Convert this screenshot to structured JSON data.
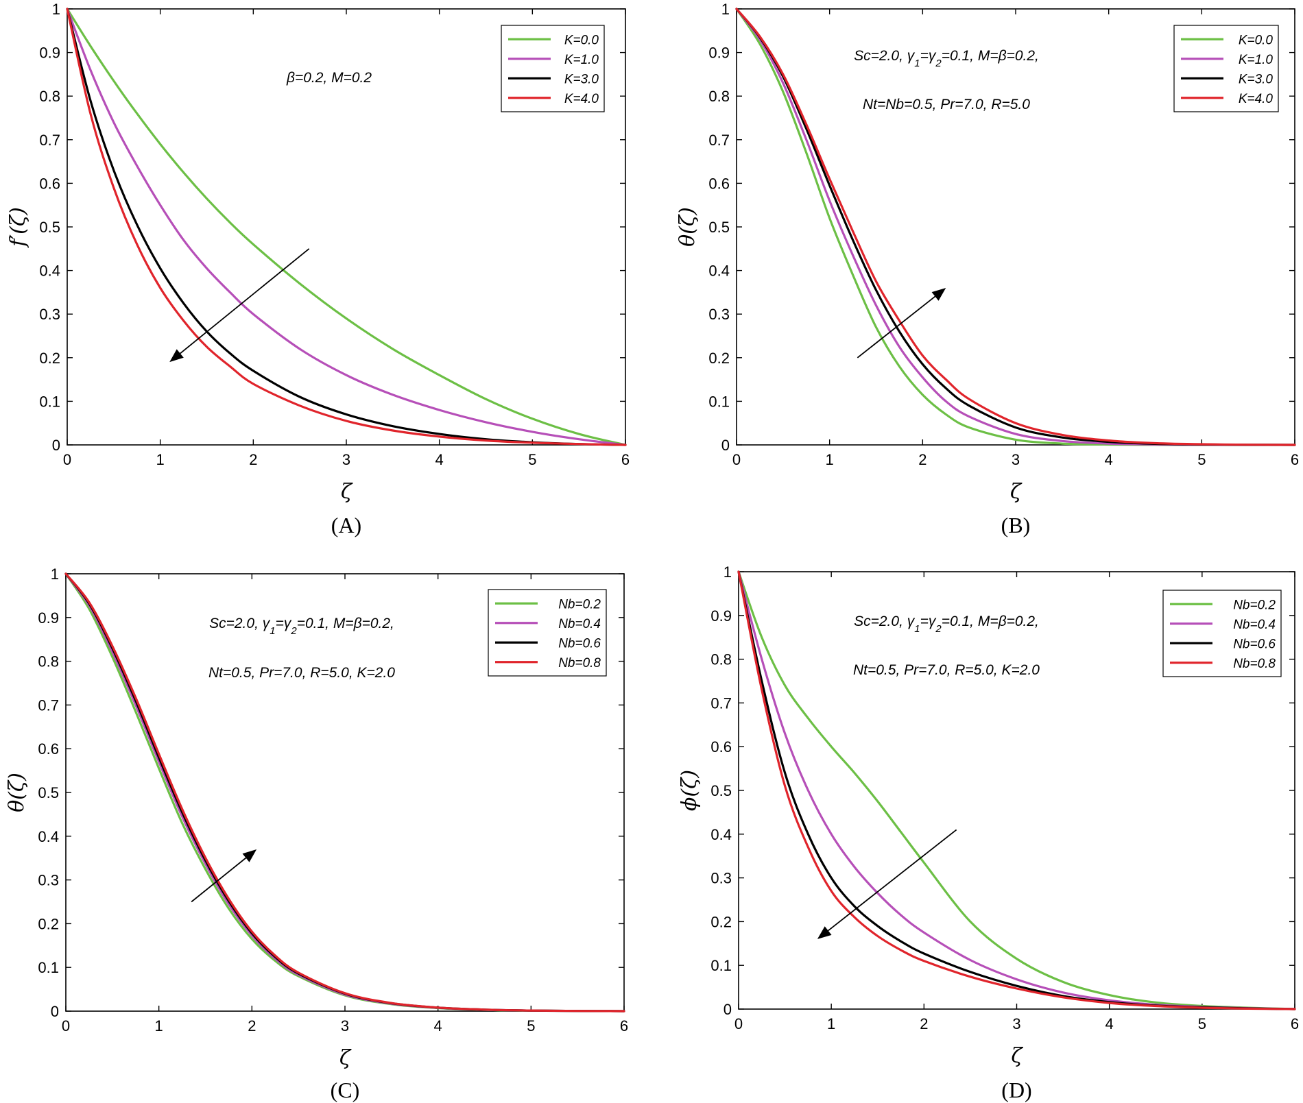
{
  "colors": {
    "green": "#6cbf45",
    "purple": "#b64fb8",
    "black": "#000000",
    "red": "#e0242b"
  },
  "chart_data": [
    {
      "type": "line",
      "caption": "(A)",
      "xlabel": "ζ",
      "ylabel": "f′(ζ)",
      "xlim": [
        0,
        6
      ],
      "ylim": [
        0,
        1
      ],
      "xticks": [
        "0",
        "1",
        "2",
        "3",
        "4",
        "5",
        "6"
      ],
      "yticks": [
        "0",
        "0.1",
        "0.2",
        "0.3",
        "0.4",
        "0.5",
        "0.6",
        "0.7",
        "0.8",
        "0.9",
        "1"
      ],
      "annotations": [
        "β=0.2, M=0.2"
      ],
      "legend_position": "top-right",
      "arrow": {
        "from": [
          2.6,
          0.45
        ],
        "to": [
          1.1,
          0.19
        ],
        "meaning": "decreasing with K"
      },
      "x": [
        0,
        0.25,
        0.5,
        0.75,
        1,
        1.25,
        1.5,
        1.75,
        2,
        2.5,
        3,
        3.5,
        4,
        4.5,
        5,
        5.5,
        6
      ],
      "series": [
        {
          "name": "K=0.0",
          "color": "green",
          "values": [
            1.0,
            0.915,
            0.835,
            0.76,
            0.69,
            0.625,
            0.565,
            0.51,
            0.46,
            0.37,
            0.29,
            0.22,
            0.16,
            0.105,
            0.06,
            0.025,
            0.0
          ]
        },
        {
          "name": "K=1.0",
          "color": "purple",
          "values": [
            1.0,
            0.86,
            0.74,
            0.64,
            0.55,
            0.47,
            0.405,
            0.35,
            0.3,
            0.22,
            0.16,
            0.115,
            0.08,
            0.052,
            0.03,
            0.013,
            0.0
          ]
        },
        {
          "name": "K=3.0",
          "color": "black",
          "values": [
            1.0,
            0.79,
            0.63,
            0.505,
            0.405,
            0.325,
            0.26,
            0.21,
            0.17,
            0.11,
            0.07,
            0.043,
            0.025,
            0.013,
            0.006,
            0.002,
            0.0
          ]
        },
        {
          "name": "K=4.0",
          "color": "red",
          "values": [
            1.0,
            0.76,
            0.59,
            0.46,
            0.36,
            0.285,
            0.225,
            0.18,
            0.14,
            0.09,
            0.055,
            0.033,
            0.019,
            0.01,
            0.005,
            0.002,
            0.0
          ]
        }
      ]
    },
    {
      "type": "line",
      "caption": "(B)",
      "xlabel": "ζ",
      "ylabel": "θ(ζ)",
      "xlim": [
        0,
        6
      ],
      "ylim": [
        0,
        1
      ],
      "xticks": [
        "0",
        "1",
        "2",
        "3",
        "4",
        "5",
        "6"
      ],
      "yticks": [
        "0",
        "0.1",
        "0.2",
        "0.3",
        "0.4",
        "0.5",
        "0.6",
        "0.7",
        "0.8",
        "0.9",
        "1"
      ],
      "annotations": [
        "Sc=2.0, γ1=γ2=0.1, M=β=0.2,",
        "Nt=Nb=0.5, Pr=7.0, R=5.0"
      ],
      "legend_position": "top-right",
      "arrow": {
        "from": [
          1.3,
          0.2
        ],
        "to": [
          2.25,
          0.36
        ],
        "meaning": "increasing with K"
      },
      "x": [
        0,
        0.25,
        0.5,
        0.75,
        1,
        1.25,
        1.5,
        1.75,
        2,
        2.25,
        2.5,
        3,
        3.5,
        4,
        4.5,
        5,
        5.5,
        6
      ],
      "series": [
        {
          "name": "K=0.0",
          "color": "green",
          "values": [
            1.0,
            0.92,
            0.81,
            0.67,
            0.52,
            0.39,
            0.27,
            0.18,
            0.115,
            0.07,
            0.04,
            0.012,
            0.003,
            0.0008,
            0.0002,
            0.0,
            0.0,
            0.0
          ]
        },
        {
          "name": "K=1.0",
          "color": "purple",
          "values": [
            1.0,
            0.93,
            0.83,
            0.7,
            0.56,
            0.435,
            0.32,
            0.225,
            0.155,
            0.1,
            0.065,
            0.025,
            0.009,
            0.003,
            0.001,
            0.0003,
            0.0,
            0.0
          ]
        },
        {
          "name": "K=3.0",
          "color": "black",
          "values": [
            1.0,
            0.935,
            0.845,
            0.725,
            0.595,
            0.47,
            0.355,
            0.26,
            0.185,
            0.13,
            0.09,
            0.04,
            0.017,
            0.007,
            0.0025,
            0.001,
            0.0003,
            0.0
          ]
        },
        {
          "name": "K=4.0",
          "color": "red",
          "values": [
            1.0,
            0.937,
            0.85,
            0.735,
            0.61,
            0.49,
            0.375,
            0.285,
            0.205,
            0.15,
            0.105,
            0.05,
            0.023,
            0.01,
            0.004,
            0.0015,
            0.0005,
            0.0
          ]
        }
      ]
    },
    {
      "type": "line",
      "caption": "(C)",
      "xlabel": "ζ",
      "ylabel": "θ(ζ)",
      "xlim": [
        0,
        6
      ],
      "ylim": [
        0,
        1
      ],
      "xticks": [
        "0",
        "1",
        "2",
        "3",
        "4",
        "5",
        "6"
      ],
      "yticks": [
        "0",
        "0.1",
        "0.2",
        "0.3",
        "0.4",
        "0.5",
        "0.6",
        "0.7",
        "0.8",
        "0.9",
        "1"
      ],
      "annotations": [
        "Sc=2.0, γ1=γ2=0.1, M=β=0.2,",
        "Nt=0.5, Pr=7.0, R=5.0, K=2.0"
      ],
      "legend_position": "top-right",
      "arrow": {
        "from": [
          1.35,
          0.25
        ],
        "to": [
          2.05,
          0.37
        ],
        "meaning": "increasing with Nb"
      },
      "x": [
        0,
        0.25,
        0.5,
        0.75,
        1,
        1.25,
        1.5,
        1.75,
        2,
        2.25,
        2.5,
        3,
        3.5,
        4,
        4.5,
        5,
        5.5,
        6
      ],
      "series": [
        {
          "name": "Nb=0.2",
          "color": "green",
          "values": [
            1.0,
            0.92,
            0.81,
            0.685,
            0.555,
            0.43,
            0.325,
            0.235,
            0.165,
            0.115,
            0.08,
            0.036,
            0.016,
            0.007,
            0.003,
            0.0012,
            0.0004,
            0.0
          ]
        },
        {
          "name": "Nb=0.4",
          "color": "purple",
          "values": [
            1.0,
            0.928,
            0.822,
            0.7,
            0.57,
            0.445,
            0.337,
            0.245,
            0.173,
            0.12,
            0.083,
            0.038,
            0.017,
            0.0075,
            0.0032,
            0.0013,
            0.0005,
            0.0
          ]
        },
        {
          "name": "Nb=0.6",
          "color": "black",
          "values": [
            1.0,
            0.932,
            0.83,
            0.71,
            0.58,
            0.455,
            0.345,
            0.252,
            0.178,
            0.124,
            0.086,
            0.04,
            0.018,
            0.008,
            0.0034,
            0.0014,
            0.0005,
            0.0
          ]
        },
        {
          "name": "Nb=0.8",
          "color": "red",
          "values": [
            1.0,
            0.935,
            0.835,
            0.717,
            0.588,
            0.462,
            0.351,
            0.257,
            0.182,
            0.127,
            0.088,
            0.041,
            0.0185,
            0.0082,
            0.0035,
            0.0014,
            0.0005,
            0.0
          ]
        }
      ]
    },
    {
      "type": "line",
      "caption": "(D)",
      "xlabel": "ζ",
      "ylabel": "ϕ(ζ)",
      "xlim": [
        0,
        6
      ],
      "ylim": [
        0,
        1
      ],
      "xticks": [
        "0",
        "1",
        "2",
        "3",
        "4",
        "5",
        "6"
      ],
      "yticks": [
        "0",
        "0.1",
        "0.2",
        "0.3",
        "0.4",
        "0.5",
        "0.6",
        "0.7",
        "0.8",
        "0.9",
        "1"
      ],
      "annotations": [
        "Sc=2.0, γ1=γ2=0.1, M=β=0.2,",
        "Nt=0.5, Pr=7.0, R=5.0, K=2.0"
      ],
      "legend_position": "top-right",
      "arrow": {
        "from": [
          2.35,
          0.41
        ],
        "to": [
          0.85,
          0.16
        ],
        "meaning": "decreasing with Nb"
      },
      "x": [
        0,
        0.25,
        0.5,
        0.75,
        1,
        1.25,
        1.5,
        1.75,
        2,
        2.5,
        3,
        3.5,
        4,
        4.5,
        5,
        5.5,
        6
      ],
      "series": [
        {
          "name": "Nb=0.2",
          "color": "green",
          "values": [
            1.0,
            0.85,
            0.74,
            0.665,
            0.6,
            0.54,
            0.475,
            0.405,
            0.335,
            0.2,
            0.115,
            0.062,
            0.032,
            0.015,
            0.007,
            0.003,
            0.0
          ]
        },
        {
          "name": "Nb=0.4",
          "color": "purple",
          "values": [
            1.0,
            0.8,
            0.63,
            0.5,
            0.4,
            0.325,
            0.265,
            0.215,
            0.175,
            0.112,
            0.068,
            0.038,
            0.02,
            0.01,
            0.005,
            0.002,
            0.0
          ]
        },
        {
          "name": "Nb=0.6",
          "color": "black",
          "values": [
            1.0,
            0.75,
            0.54,
            0.4,
            0.3,
            0.235,
            0.19,
            0.155,
            0.127,
            0.085,
            0.053,
            0.03,
            0.016,
            0.008,
            0.004,
            0.0015,
            0.0
          ]
        },
        {
          "name": "Nb=0.8",
          "color": "red",
          "values": [
            1.0,
            0.73,
            0.51,
            0.37,
            0.27,
            0.21,
            0.167,
            0.135,
            0.11,
            0.074,
            0.047,
            0.027,
            0.014,
            0.007,
            0.003,
            0.001,
            0.0
          ]
        }
      ]
    }
  ]
}
